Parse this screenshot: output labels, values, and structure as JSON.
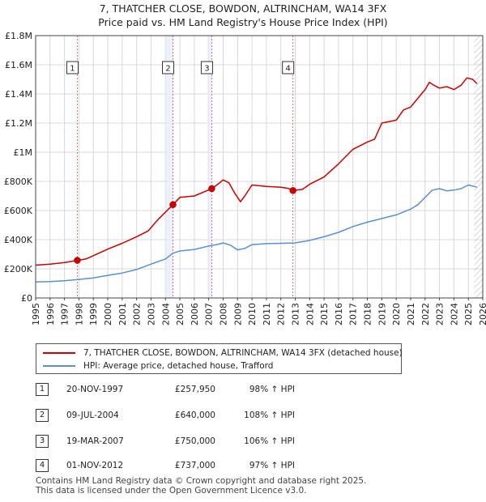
{
  "title_line1": "7, THATCHER CLOSE, BOWDON, ALTRINCHAM, WA14 3FX",
  "title_line2": "Price paid vs. HM Land Registry's House Price Index (HPI)",
  "chart_data": {
    "type": "line",
    "title": "7, THATCHER CLOSE, BOWDON, ALTRINCHAM, WA14 3FX — Price paid vs. HM Land Registry's House Price Index (HPI)",
    "xlabel": "",
    "ylabel": "",
    "xlim": [
      1995,
      2026
    ],
    "ylim": [
      0,
      1800000
    ],
    "x_ticks": [
      "1995",
      "1996",
      "1997",
      "1998",
      "1999",
      "2000",
      "2001",
      "2002",
      "2003",
      "2004",
      "2005",
      "2006",
      "2007",
      "2008",
      "2009",
      "2010",
      "2011",
      "2012",
      "2013",
      "2014",
      "2015",
      "2016",
      "2017",
      "2018",
      "2019",
      "2020",
      "2021",
      "2022",
      "2023",
      "2024",
      "2025",
      "2026"
    ],
    "y_ticks": [
      {
        "value": 0,
        "label": "£0"
      },
      {
        "value": 200000,
        "label": "£200K"
      },
      {
        "value": 400000,
        "label": "£400K"
      },
      {
        "value": 600000,
        "label": "£600K"
      },
      {
        "value": 800000,
        "label": "£800K"
      },
      {
        "value": 1000000,
        "label": "£1M"
      },
      {
        "value": 1200000,
        "label": "£1.2M"
      },
      {
        "value": 1400000,
        "label": "£1.4M"
      },
      {
        "value": 1600000,
        "label": "£1.6M"
      },
      {
        "value": 1800000,
        "label": "£1.8M"
      }
    ],
    "grid": true,
    "series": [
      {
        "name": "7, THATCHER CLOSE, BOWDON, ALTRINCHAM, WA14 3FX (detached house)",
        "color": "#cc0000",
        "x": [
          1995,
          1996,
          1997,
          1997.89,
          1998.5,
          1999,
          2000,
          2001,
          2002,
          2002.8,
          2003.5,
          2004.52,
          2005,
          2006,
          2007.21,
          2007.6,
          2008.0,
          2008.4,
          2008.8,
          2009.2,
          2009.5,
          2010,
          2010.5,
          2011,
          2011.5,
          2012,
          2012.5,
          2012.84,
          2013.5,
          2014,
          2015,
          2016,
          2016.5,
          2017,
          2018,
          2018.5,
          2019,
          2020,
          2020.5,
          2021,
          2021.5,
          2022,
          2022.3,
          2022.6,
          2023,
          2023.5,
          2024,
          2024.5,
          2024.9,
          2025.3,
          2025.6
        ],
        "values": [
          225000,
          232000,
          243000,
          257950,
          268000,
          290000,
          335000,
          375000,
          420000,
          460000,
          540000,
          640000,
          690000,
          700000,
          750000,
          778000,
          810000,
          790000,
          720000,
          660000,
          700000,
          775000,
          770000,
          765000,
          762000,
          760000,
          752000,
          737000,
          745000,
          780000,
          830000,
          920000,
          970000,
          1020000,
          1070000,
          1090000,
          1200000,
          1220000,
          1290000,
          1310000,
          1370000,
          1430000,
          1480000,
          1460000,
          1440000,
          1450000,
          1430000,
          1460000,
          1510000,
          1500000,
          1470000
        ]
      },
      {
        "name": "HPI: Average price, detached house, Trafford",
        "color": "#5b8fcf",
        "x": [
          1995,
          1996,
          1997,
          1998,
          1999,
          2000,
          2001,
          2002,
          2003,
          2004,
          2004.52,
          2005,
          2006,
          2007,
          2007.6,
          2008,
          2008.5,
          2009,
          2009.5,
          2010,
          2011,
          2012,
          2012.84,
          2013,
          2014,
          2015,
          2016,
          2017,
          2018,
          2019,
          2020,
          2021,
          2021.5,
          2022,
          2022.5,
          2023,
          2023.5,
          2024,
          2024.5,
          2025,
          2025.6
        ],
        "values": [
          110000,
          113000,
          118000,
          127000,
          137000,
          155000,
          171000,
          195000,
          232000,
          268000,
          307000,
          322000,
          333000,
          356000,
          367000,
          377000,
          363000,
          330000,
          340000,
          366000,
          373000,
          375000,
          377000,
          378000,
          395000,
          420000,
          450000,
          490000,
          520000,
          545000,
          570000,
          610000,
          640000,
          690000,
          740000,
          750000,
          735000,
          740000,
          750000,
          775000,
          760000
        ]
      }
    ],
    "transactions": [
      {
        "num": "1",
        "x": 1997.89,
        "value": 257950
      },
      {
        "num": "2",
        "x": 2004.52,
        "value": 640000
      },
      {
        "num": "3",
        "x": 2007.21,
        "value": 750000
      },
      {
        "num": "4",
        "x": 2012.84,
        "value": 737000
      }
    ]
  },
  "legend": {
    "red_label": "7, THATCHER CLOSE, BOWDON, ALTRINCHAM, WA14 3FX (detached house)",
    "blue_label": "HPI: Average price, detached house, Trafford"
  },
  "table": [
    {
      "num": "1",
      "date": "20-NOV-1997",
      "price": "£257,950",
      "hpi": "98% ↑ HPI"
    },
    {
      "num": "2",
      "date": "09-JUL-2004",
      "price": "£640,000",
      "hpi": "108% ↑ HPI"
    },
    {
      "num": "3",
      "date": "19-MAR-2007",
      "price": "£750,000",
      "hpi": "106% ↑ HPI"
    },
    {
      "num": "4",
      "date": "01-NOV-2012",
      "price": "£737,000",
      "hpi": "97% ↑ HPI"
    }
  ],
  "footer_line1": "Contains HM Land Registry data © Crown copyright and database right 2025.",
  "footer_line2": "This data is licensed under the Open Government Licence v3.0."
}
